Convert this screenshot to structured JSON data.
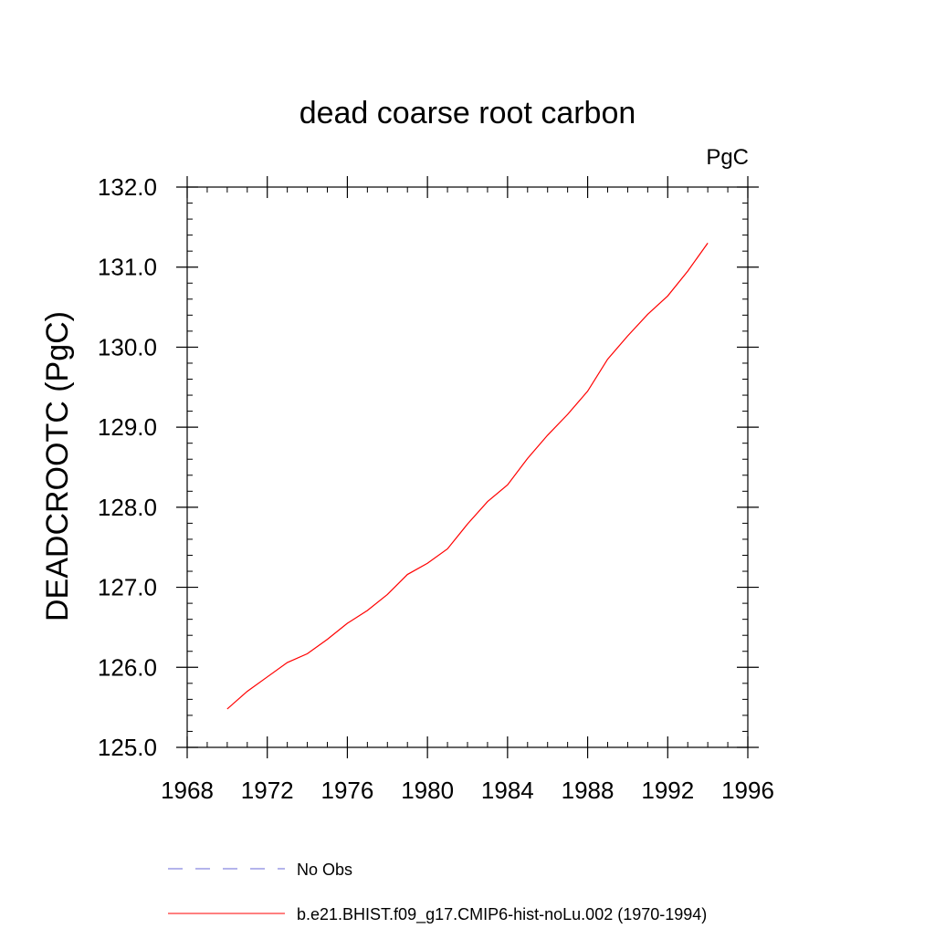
{
  "chart_data": {
    "type": "line",
    "title": "dead coarse root carbon",
    "units_label": "PgC",
    "ylabel": "DEADCROOTC  (PgC)",
    "xlabel": "",
    "xlim": [
      1968,
      1996
    ],
    "ylim": [
      125.0,
      132.0
    ],
    "x_ticks": [
      1968,
      1972,
      1976,
      1980,
      1984,
      1988,
      1992,
      1996
    ],
    "x_tick_labels": [
      "1968",
      "1972",
      "1976",
      "1980",
      "1984",
      "1988",
      "1992",
      "1996"
    ],
    "y_ticks": [
      125.0,
      126.0,
      127.0,
      128.0,
      129.0,
      130.0,
      131.0,
      132.0
    ],
    "y_tick_labels": [
      "125.0",
      "126.0",
      "127.0",
      "128.0",
      "129.0",
      "130.0",
      "131.0",
      "132.0"
    ],
    "grid": false,
    "legend_position": "bottom",
    "series": [
      {
        "name": "b.e21.BHIST.f09_g17.CMIP6-hist-noLu.002 (1970-1994)",
        "color": "#ff0000",
        "style": "solid",
        "x": [
          1970,
          1971,
          1972,
          1973,
          1974,
          1975,
          1976,
          1977,
          1978,
          1979,
          1980,
          1981,
          1982,
          1983,
          1984,
          1985,
          1986,
          1987,
          1988,
          1989,
          1990,
          1991,
          1992,
          1993,
          1994
        ],
        "y": [
          125.48,
          125.7,
          125.88,
          126.06,
          126.17,
          126.35,
          126.55,
          126.71,
          126.91,
          127.16,
          127.3,
          127.48,
          127.79,
          128.07,
          128.28,
          128.61,
          128.9,
          129.16,
          129.45,
          129.85,
          130.14,
          130.41,
          130.64,
          130.95,
          131.3
        ]
      }
    ],
    "legend": [
      {
        "label": "No Obs",
        "color": "#6a6ad8",
        "style": "dashed"
      },
      {
        "label": "b.e21.BHIST.f09_g17.CMIP6-hist-noLu.002 (1970-1994)",
        "color": "#ff0000",
        "style": "solid"
      }
    ]
  }
}
